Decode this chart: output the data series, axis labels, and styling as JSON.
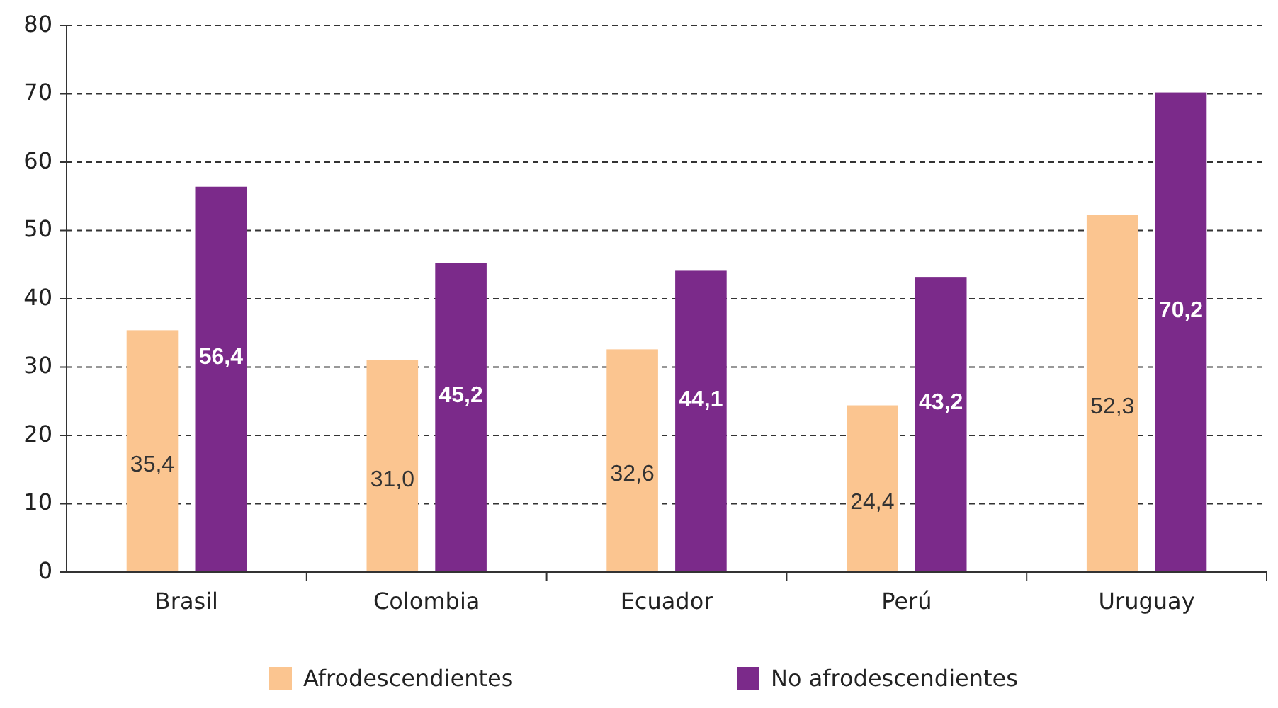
{
  "chart_data": {
    "type": "bar",
    "categories": [
      "Brasil",
      "Colombia",
      "Ecuador",
      "Perú",
      "Uruguay"
    ],
    "series": [
      {
        "name": "Afrodescendientes",
        "color": "#fbc590",
        "values": [
          35.4,
          31.0,
          32.6,
          24.4,
          52.3
        ],
        "value_labels": [
          "35,4",
          "31,0",
          "32,6",
          "24,4",
          "52,3"
        ]
      },
      {
        "name": "No afrodescendientes",
        "color": "#7b2a8a",
        "values": [
          56.4,
          45.2,
          44.1,
          43.2,
          70.2
        ],
        "value_labels": [
          "56,4",
          "45,2",
          "44,1",
          "43,2",
          "70,2"
        ]
      }
    ],
    "ylim": [
      0,
      80
    ],
    "yticks": [
      0,
      10,
      20,
      30,
      40,
      50,
      60,
      70,
      80
    ],
    "grid": "y",
    "legend": "bottom"
  }
}
